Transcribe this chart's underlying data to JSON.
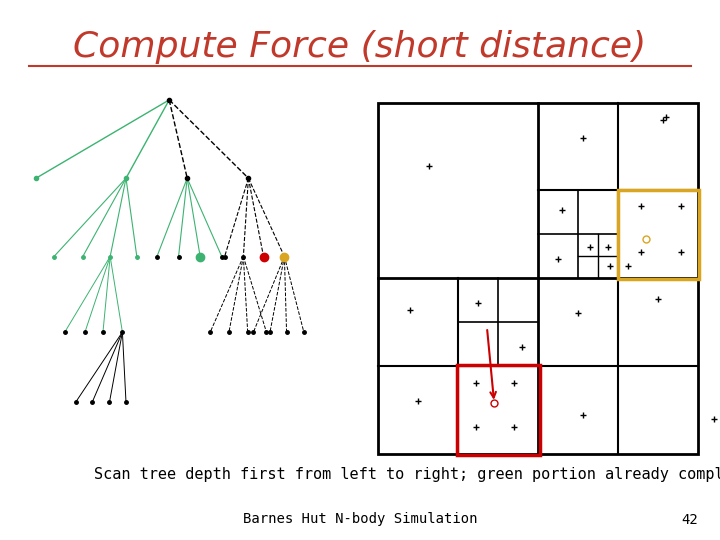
{
  "title": "Compute Force (short distance)",
  "title_color": "#C0392B",
  "title_fontsize": 26,
  "subtitle": "Scan tree depth first from left to right; green portion already completed",
  "subtitle_fontsize": 11,
  "footer": "Barnes Hut N-body Simulation",
  "footer_page": "42",
  "bg_color": "#ffffff",
  "green_color": "#3CB371",
  "black_color": "#000000",
  "red_color": "#CC0000",
  "yellow_color": "#DAA520"
}
